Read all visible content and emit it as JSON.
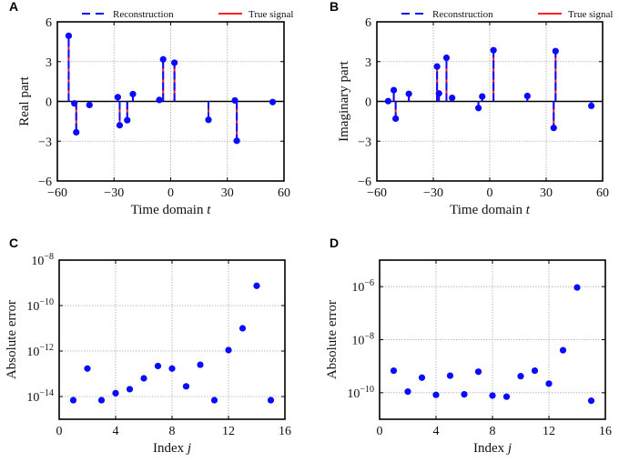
{
  "colors": {
    "reconstruction": "#0a0aff",
    "true_signal": "#ff2020",
    "grid": "#aaaaaa",
    "axis": "#000000"
  },
  "legend": {
    "reconstruction": "Reconstruction",
    "true_signal": "True signal",
    "reconstruction_style": "dashed",
    "true_signal_style": "solid",
    "placement": "top"
  },
  "chart_data": [
    {
      "panel": "A",
      "type": "stem",
      "xlabel": "Time domain",
      "xvar": "t",
      "ylabel": "Real part",
      "xlim": [
        -60,
        60
      ],
      "ylim": [
        -6,
        6
      ],
      "grid": true,
      "yscale": "linear",
      "xticks": [
        -60,
        -30,
        0,
        30,
        60
      ],
      "yticks": [
        -6,
        -3,
        0,
        3,
        6
      ],
      "xtick_labels": [
        "−60",
        "−30",
        "0",
        "30",
        "60"
      ],
      "ytick_labels": [
        "−6",
        "−3",
        "0",
        "3",
        "6"
      ],
      "x": [
        -54,
        -51,
        -50,
        -43,
        -28,
        -27,
        -23,
        -20,
        -6,
        -4,
        2,
        20,
        34,
        35,
        54
      ],
      "y": [
        4.95,
        -0.15,
        -2.33,
        -0.27,
        0.32,
        -1.8,
        -1.42,
        0.55,
        0.11,
        3.17,
        2.92,
        -1.39,
        0.07,
        -2.97,
        -0.05
      ]
    },
    {
      "panel": "B",
      "type": "stem",
      "xlabel": "Time domain",
      "xvar": "t",
      "ylabel": "Imaginary part",
      "xlim": [
        -60,
        60
      ],
      "ylim": [
        -6,
        6
      ],
      "grid": true,
      "yscale": "linear",
      "xticks": [
        -60,
        -30,
        0,
        30,
        60
      ],
      "yticks": [
        -6,
        -3,
        0,
        3,
        6
      ],
      "xtick_labels": [
        "−60",
        "−30",
        "0",
        "30",
        "60"
      ],
      "ytick_labels": [
        "−6",
        "−3",
        "0",
        "3",
        "6"
      ],
      "x": [
        -54,
        -51,
        -50,
        -43,
        -28,
        -27,
        -23,
        -20,
        -6,
        -4,
        2,
        20,
        34,
        35,
        54
      ],
      "y": [
        0.02,
        0.85,
        -1.3,
        0.57,
        2.63,
        0.6,
        3.29,
        0.27,
        -0.5,
        0.37,
        3.86,
        0.41,
        -2.0,
        3.79,
        -0.34
      ]
    },
    {
      "panel": "C",
      "type": "scatter",
      "xlabel": "Index",
      "xvar": "j",
      "ylabel": "Absolute error",
      "xlim": [
        0,
        16
      ],
      "ylim": [
        1e-15,
        1e-08
      ],
      "grid": true,
      "yscale": "log",
      "xticks": [
        0,
        4,
        8,
        12,
        16
      ],
      "yticks": [
        1e-14,
        1e-12,
        1e-10,
        1e-08
      ],
      "xtick_labels": [
        "0",
        "4",
        "8",
        "12",
        "16"
      ],
      "ytick_labels": [
        {
          "base": "10",
          "exp": "−14"
        },
        {
          "base": "10",
          "exp": "−12"
        },
        {
          "base": "10",
          "exp": "−10"
        },
        {
          "base": "10",
          "exp": "−8"
        }
      ],
      "x": [
        1,
        2,
        3,
        4,
        5,
        6,
        7,
        8,
        9,
        10,
        11,
        12,
        13,
        14,
        15
      ],
      "y": [
        6.9e-15,
        1.7e-13,
        6.9e-15,
        1.4e-14,
        2.1e-14,
        6.3e-14,
        2.2e-13,
        1.7e-13,
        2.8e-14,
        2.5e-13,
        6.9e-15,
        1.1e-12,
        1e-11,
        7.4e-10,
        6.9e-15
      ]
    },
    {
      "panel": "D",
      "type": "scatter",
      "xlabel": "Index",
      "xvar": "j",
      "ylabel": "Absolute error",
      "xlim": [
        0,
        16
      ],
      "ylim": [
        1e-11,
        1e-05
      ],
      "grid": true,
      "yscale": "log",
      "xticks": [
        0,
        4,
        8,
        12,
        16
      ],
      "yticks": [
        1e-10,
        1e-08,
        1e-06
      ],
      "xtick_labels": [
        "0",
        "4",
        "8",
        "12",
        "16"
      ],
      "ytick_labels": [
        {
          "base": "10",
          "exp": "−10"
        },
        {
          "base": "10",
          "exp": "−8"
        },
        {
          "base": "10",
          "exp": "−6"
        }
      ],
      "x": [
        1,
        2,
        3,
        4,
        5,
        6,
        7,
        8,
        9,
        10,
        11,
        12,
        13,
        14,
        15
      ],
      "y": [
        6.8e-10,
        1.1e-10,
        3.7e-10,
        8.3e-11,
        4.4e-10,
        8.7e-11,
        6.2e-10,
        7.8e-11,
        7.1e-11,
        4.2e-10,
        6.8e-10,
        2.2e-10,
        4e-09,
        9.3e-07,
        5e-11
      ]
    }
  ]
}
